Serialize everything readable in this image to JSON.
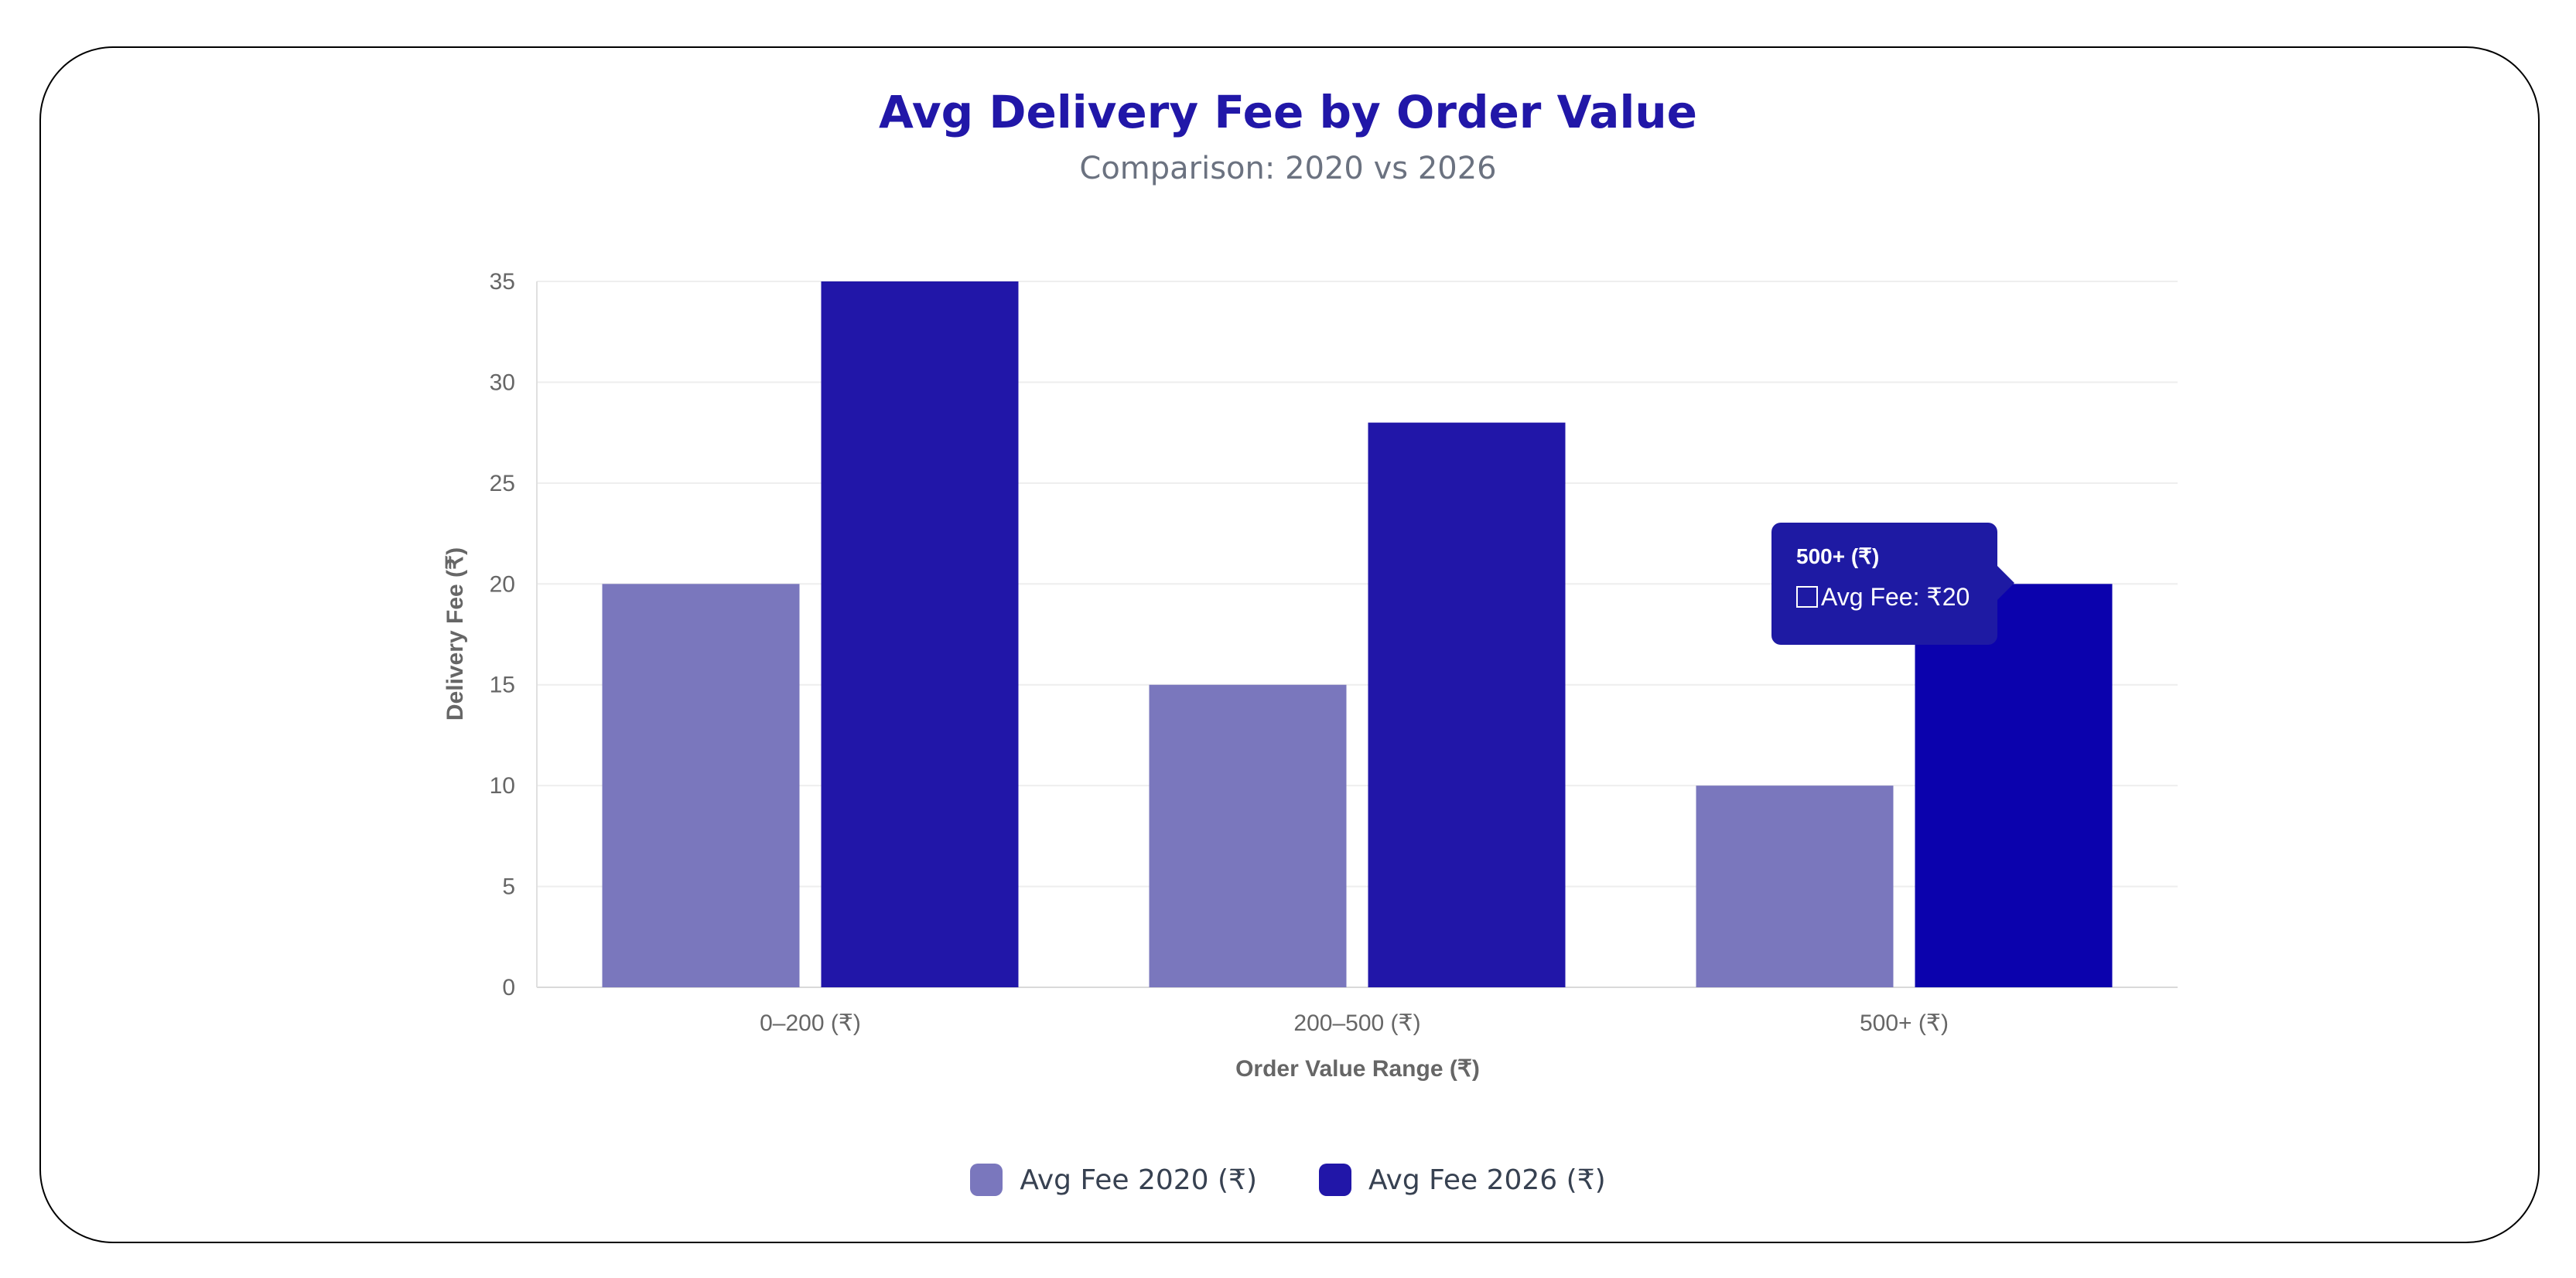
{
  "chart_data": {
    "type": "bar",
    "title": "Avg Delivery Fee by Order Value",
    "subtitle": "Comparison: 2020 vs 2026",
    "categories": [
      "0–200 (₹)",
      "200–500 (₹)",
      "500+ (₹)"
    ],
    "series": [
      {
        "name": "Avg Fee 2020 (₹)",
        "values": [
          20,
          15,
          10
        ],
        "color": "#7a77bd"
      },
      {
        "name": "Avg Fee 2026 (₹)",
        "values": [
          35,
          28,
          20
        ],
        "color": "#2116a8"
      }
    ],
    "xlabel": "Order Value Range (₹)",
    "ylabel": "Delivery Fee (₹)",
    "ylim": [
      0,
      35
    ],
    "yticks": [
      0,
      5,
      10,
      15,
      20,
      25,
      30,
      35
    ],
    "grid": true,
    "legend_position": "bottom",
    "highlight": {
      "category_index": 2,
      "series_index": 1,
      "color": "#0b02ad"
    }
  },
  "tooltip": {
    "title": "500+ (₹)",
    "label": "Avg Fee: ₹20"
  }
}
